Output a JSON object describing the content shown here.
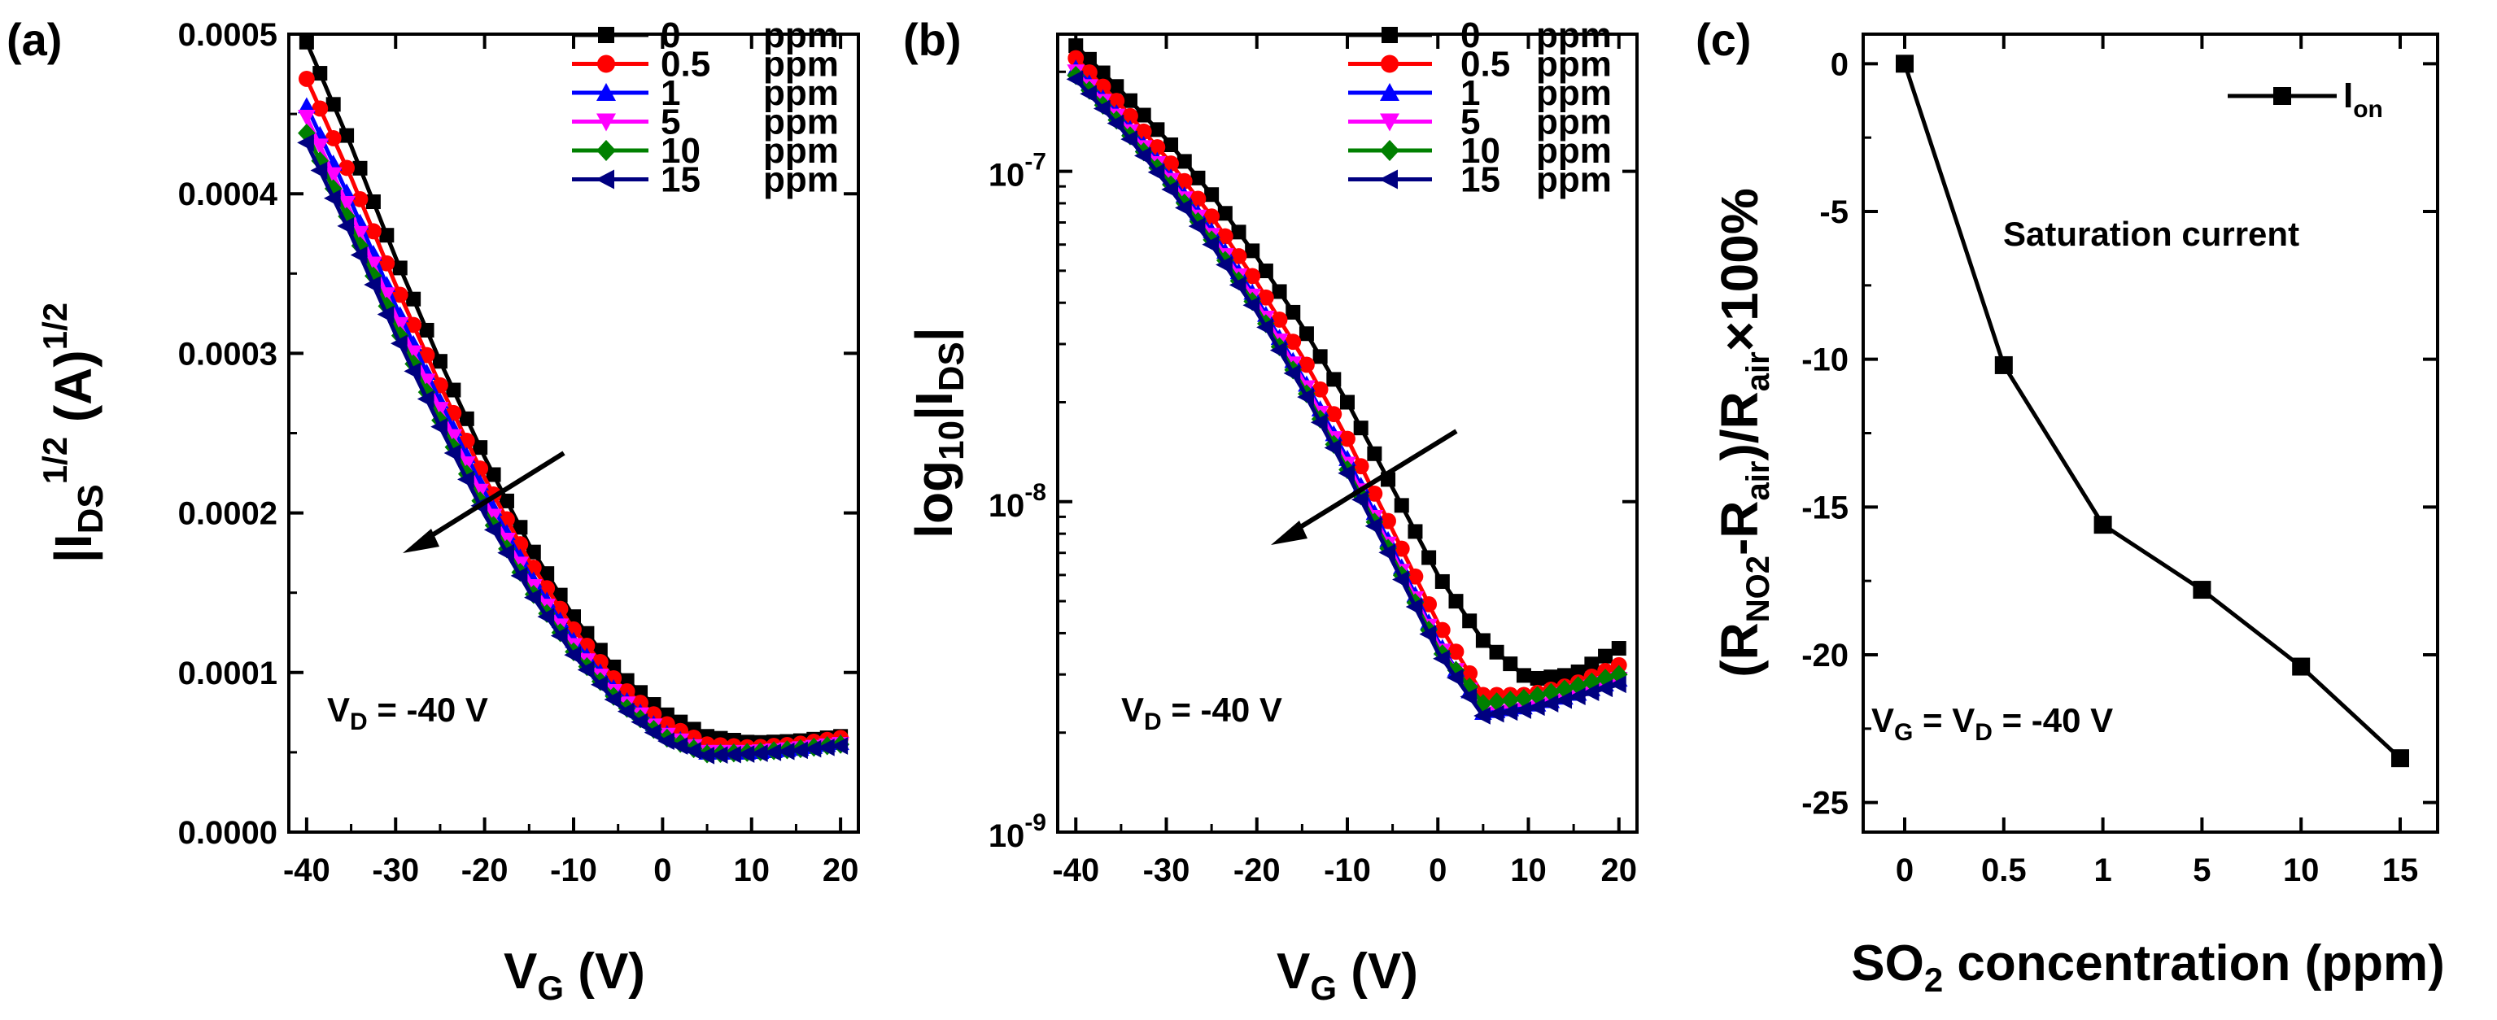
{
  "chart_data": [
    {
      "panel": "(a)",
      "type": "line",
      "xlabel": "VG (V)",
      "ylabel": "|IDS|1/2 (A)1/2",
      "xlim": [
        -42,
        22
      ],
      "ylim": [
        0,
        0.0005
      ],
      "xticks": [
        -40,
        -30,
        -20,
        -10,
        0,
        10,
        20
      ],
      "xtick_labels": [
        "-40",
        "-30",
        "-20",
        "-10",
        "0",
        "10",
        "20"
      ],
      "yticks": [
        0,
        0.0001,
        0.0002,
        0.0003,
        0.0004,
        0.0005
      ],
      "ytick_labels": [
        "0.0000",
        "0.0001",
        "0.0002",
        "0.0003",
        "0.0004",
        "0.0005"
      ],
      "annotation": "VD = -40 V",
      "series": [
        {
          "name": "0",
          "unit": "ppm",
          "color": "#000000",
          "marker": "square",
          "x": [
            -40,
            -35,
            -30,
            -25,
            -20,
            -15,
            -10,
            -5,
            0,
            5,
            10,
            15,
            20
          ],
          "y": [
            0.000495,
            0.00043,
            0.00036,
            0.000295,
            0.000235,
            0.00018,
            0.000135,
            0.0001,
            7.5e-05,
            6e-05,
            5.6e-05,
            5.7e-05,
            6e-05
          ]
        },
        {
          "name": "0.5",
          "unit": "ppm",
          "color": "#ff0000",
          "marker": "circle",
          "x": [
            -40,
            -35,
            -30,
            -25,
            -20,
            -15,
            -10,
            -5,
            0,
            5,
            10,
            15,
            20
          ],
          "y": [
            0.000472,
            0.00041,
            0.000343,
            0.00028,
            0.000222,
            0.00017,
            0.000127,
            9.3e-05,
            6.9e-05,
            5.5e-05,
            5.3e-05,
            5.5e-05,
            5.9e-05
          ]
        },
        {
          "name": "1",
          "unit": "ppm",
          "color": "#0000ff",
          "marker": "triangle-up",
          "x": [
            -40,
            -35,
            -30,
            -25,
            -20,
            -15,
            -10,
            -5,
            0,
            5,
            10,
            15,
            20
          ],
          "y": [
            0.000455,
            0.000395,
            0.00033,
            0.00027,
            0.000213,
            0.000162,
            0.00012,
            8.7e-05,
            6.3e-05,
            5e-05,
            5e-05,
            5.2e-05,
            5.6e-05
          ]
        },
        {
          "name": "5",
          "unit": "ppm",
          "color": "#ff00ff",
          "marker": "triangle-down",
          "x": [
            -40,
            -35,
            -30,
            -25,
            -20,
            -15,
            -10,
            -5,
            0,
            5,
            10,
            15,
            20
          ],
          "y": [
            0.000448,
            0.000388,
            0.000324,
            0.000265,
            0.000208,
            0.000158,
            0.000117,
            8.5e-05,
            6.2e-05,
            5e-05,
            5e-05,
            5.2e-05,
            5.5e-05
          ]
        },
        {
          "name": "10",
          "unit": "ppm",
          "color": "#008000",
          "marker": "diamond",
          "x": [
            -40,
            -35,
            -30,
            -25,
            -20,
            -15,
            -10,
            -5,
            0,
            5,
            10,
            15,
            20
          ],
          "y": [
            0.000438,
            0.00038,
            0.000317,
            0.000258,
            0.000202,
            0.000153,
            0.000113,
            8.2e-05,
            6e-05,
            4.9e-05,
            5e-05,
            5.2e-05,
            5.5e-05
          ]
        },
        {
          "name": "15",
          "unit": "ppm",
          "color": "#000080",
          "marker": "triangle-left",
          "x": [
            -40,
            -35,
            -30,
            -25,
            -20,
            -15,
            -10,
            -5,
            0,
            5,
            10,
            15,
            20
          ],
          "y": [
            0.000432,
            0.000374,
            0.000312,
            0.000254,
            0.000199,
            0.000151,
            0.000111,
            8e-05,
            5.8e-05,
            4.8e-05,
            4.9e-05,
            5.1e-05,
            5.4e-05
          ]
        }
      ]
    },
    {
      "panel": "(b)",
      "type": "line",
      "yscale": "log",
      "xlabel": "VG (V)",
      "ylabel": "log10|IDS|",
      "xlim": [
        -42,
        22
      ],
      "ylim": [
        1e-09,
        2.6e-07
      ],
      "xticks": [
        -40,
        -30,
        -20,
        -10,
        0,
        10,
        20
      ],
      "xtick_labels": [
        "-40",
        "-30",
        "-20",
        "-10",
        "0",
        "10",
        "20"
      ],
      "yticks": [
        1e-09,
        1e-08,
        1e-07
      ],
      "ytick_labels": [
        "10-9",
        "10-8",
        "10-7"
      ],
      "annotation": "VD = -40 V",
      "series": [
        {
          "name": "0",
          "unit": "ppm",
          "color": "#000000",
          "marker": "square",
          "x": [
            -40,
            -35,
            -30,
            -25,
            -20,
            -15,
            -10,
            -5,
            0,
            5,
            10,
            15,
            20
          ],
          "y": [
            2.4e-07,
            1.75e-07,
            1.25e-07,
            8.5e-08,
            5.5e-08,
            3.4e-08,
            2e-08,
            1.1e-08,
            6e-09,
            3.8e-09,
            2.9e-09,
            3e-09,
            3.6e-09
          ]
        },
        {
          "name": "0.5",
          "unit": "ppm",
          "color": "#ff0000",
          "marker": "circle",
          "x": [
            -40,
            -35,
            -30,
            -25,
            -20,
            -15,
            -10,
            -5,
            0,
            5,
            10,
            15,
            20
          ],
          "y": [
            2.2e-07,
            1.58e-07,
            1.1e-07,
            7.3e-08,
            4.6e-08,
            2.75e-08,
            1.55e-08,
            8.2e-09,
            4.3e-09,
            2.6e-09,
            2.6e-09,
            2.8e-09,
            3.2e-09
          ]
        },
        {
          "name": "1",
          "unit": "ppm",
          "color": "#0000ff",
          "marker": "triangle-up",
          "x": [
            -40,
            -35,
            -30,
            -25,
            -20,
            -15,
            -10,
            -5,
            0,
            5,
            10,
            15,
            20
          ],
          "y": [
            2.05e-07,
            1.45e-07,
            1e-07,
            6.6e-08,
            4.1e-08,
            2.4e-08,
            1.35e-08,
            7.2e-09,
            3.8e-09,
            2.3e-09,
            2.4e-09,
            2.6e-09,
            2.9e-09
          ]
        },
        {
          "name": "5",
          "unit": "ppm",
          "color": "#ff00ff",
          "marker": "triangle-down",
          "x": [
            -40,
            -35,
            -30,
            -25,
            -20,
            -15,
            -10,
            -5,
            0,
            5,
            10,
            15,
            20
          ],
          "y": [
            2e-07,
            1.42e-07,
            9.8e-08,
            6.4e-08,
            4e-08,
            2.35e-08,
            1.3e-08,
            7e-09,
            3.7e-09,
            2.35e-09,
            2.45e-09,
            2.65e-09,
            2.9e-09
          ]
        },
        {
          "name": "10",
          "unit": "ppm",
          "color": "#008000",
          "marker": "diamond",
          "x": [
            -40,
            -35,
            -30,
            -25,
            -20,
            -15,
            -10,
            -5,
            0,
            5,
            10,
            15,
            20
          ],
          "y": [
            1.95e-07,
            1.38e-07,
            9.5e-08,
            6.2e-08,
            3.85e-08,
            2.25e-08,
            1.25e-08,
            6.8e-09,
            3.6e-09,
            2.45e-09,
            2.55e-09,
            2.75e-09,
            3e-09
          ]
        },
        {
          "name": "15",
          "unit": "ppm",
          "color": "#000080",
          "marker": "triangle-left",
          "x": [
            -40,
            -35,
            -30,
            -25,
            -20,
            -15,
            -10,
            -5,
            0,
            5,
            10,
            15,
            20
          ],
          "y": [
            1.9e-07,
            1.35e-07,
            9.2e-08,
            6e-08,
            3.75e-08,
            2.2e-08,
            1.22e-08,
            6.6e-09,
            3.5e-09,
            2.25e-09,
            2.35e-09,
            2.55e-09,
            2.8e-09
          ]
        }
      ]
    },
    {
      "panel": "(c)",
      "type": "line",
      "xlabel": "SO2 concentration (ppm)",
      "ylabel": "(RNO2-Rair)/Rair ×100%",
      "categories": [
        "0",
        "0.5",
        "1",
        "5",
        "10",
        "15"
      ],
      "ylim": [
        -26,
        1
      ],
      "yticks": [
        0,
        -5,
        -10,
        -15,
        -20,
        -25
      ],
      "ytick_labels": [
        "0",
        "-5",
        "-10",
        "-15",
        "-20",
        "-25"
      ],
      "annotation_title": "Saturation current",
      "annotation": "VG = VD = -40 V",
      "series": [
        {
          "name": "Ion",
          "color": "#000000",
          "marker": "square",
          "values": [
            0,
            -10.2,
            -15.6,
            -17.8,
            -20.4,
            -23.5
          ]
        }
      ]
    }
  ],
  "labels": {
    "a_ylabel_main": "|I",
    "a_ylabel_sub": "DS",
    "a_ylabel_sup1": "1/2",
    "a_ylabel_mid": " (A)",
    "a_ylabel_sup2": "1/2",
    "b_ylabel_main": "log",
    "b_ylabel_sub1": "10",
    "b_ylabel_mid": "|I",
    "b_ylabel_sub2": "DS",
    "b_ylabel_end": "|",
    "xlabel_v": "V",
    "xlabel_g": "G",
    "xlabel_unit": " (V)",
    "ann_v": "V",
    "ann_d": "D",
    "ann_val": " = -40 V",
    "ann_g": "G",
    "ann_eq": " = V",
    "c_x_so": "SO",
    "c_x_2": "2",
    "c_x_rest": " concentration (ppm)",
    "c_y_open": "(R",
    "c_y_no2": "NO2",
    "c_y_minus": "-R",
    "c_y_air1": "air",
    "c_y_div": ")/R",
    "c_y_air2": "air",
    "c_y_end": "×100%",
    "c_leg_i": "I",
    "c_leg_on": "on"
  }
}
